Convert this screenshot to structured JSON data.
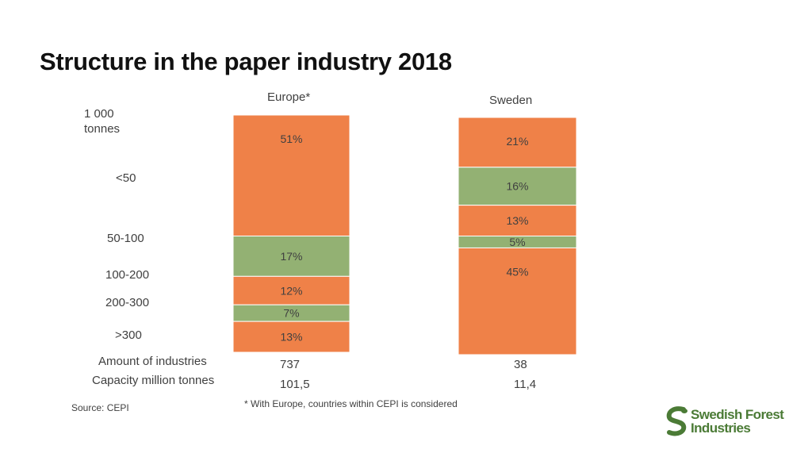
{
  "page": {
    "title": "Structure in the paper industry 2018",
    "source": "Source: CEPI",
    "footnote": "* With Europe, countries within CEPI is considered"
  },
  "chart_data": {
    "type": "stacked-bar",
    "title": "Structure in the paper industry 2018",
    "unit_label": "1 000 tonnes",
    "categories": [
      "<50",
      "50-100",
      "100-200",
      "200-300",
      ">300"
    ],
    "colors": {
      "orange": "#ef8148",
      "green": "#93b173"
    },
    "segment_order": "top-to-bottom",
    "series": [
      {
        "name": "Europe*",
        "values": [
          51,
          17,
          12,
          7,
          13
        ],
        "labels": [
          "51%",
          "17%",
          "12%",
          "7%",
          "13%"
        ],
        "amount_of_industries": "737",
        "capacity_million_tonnes": "101,5"
      },
      {
        "name": "Sweden",
        "values": [
          21,
          16,
          13,
          5,
          45
        ],
        "labels": [
          "21%",
          "16%",
          "13%",
          "5%",
          "45%"
        ],
        "amount_of_industries": "38",
        "capacity_million_tonnes": "11,4"
      }
    ],
    "row_labels": {
      "amount": "Amount of industries",
      "capacity": "Capacity million tonnes"
    }
  },
  "logo": {
    "line1": "Swedish Forest",
    "line2": "Industries",
    "icon": "sfi-leaf-s-icon"
  }
}
